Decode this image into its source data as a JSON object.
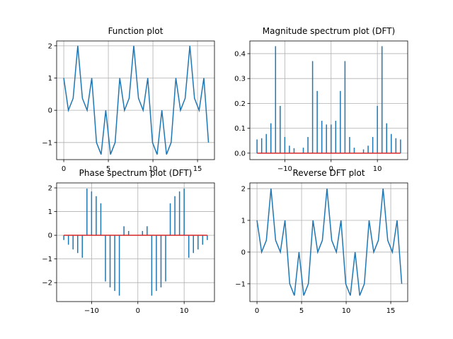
{
  "chart_data": [
    {
      "type": "line",
      "title": "Function plot",
      "color": "#1f77b4",
      "grid": true,
      "x": [
        0,
        0.52,
        1.05,
        1.57,
        2.09,
        2.62,
        3.14,
        3.67,
        4.19,
        4.71,
        5.24,
        5.76,
        6.28,
        6.81,
        7.33,
        7.85,
        8.38,
        8.9,
        9.42,
        9.95,
        10.47,
        11.0,
        11.52,
        12.04,
        12.57,
        13.09,
        13.61,
        14.14,
        14.66,
        15.18,
        15.71,
        16.23
      ],
      "values": [
        1,
        0,
        0.37,
        2,
        0.37,
        0,
        1,
        -1,
        -1.37,
        0,
        -1.37,
        -1,
        1,
        0,
        0.37,
        2,
        0.37,
        0,
        1,
        -1,
        -1.37,
        0,
        -1.37,
        -1,
        1,
        0,
        0.37,
        2,
        0.37,
        0,
        1,
        -1
      ],
      "xlim": [
        -0.8,
        16.9
      ],
      "ylim": [
        -1.53,
        2.15
      ],
      "xticks": [
        0,
        5,
        10,
        15
      ],
      "yticks": [
        {
          "value": -1,
          "label": "−1"
        },
        0,
        1,
        2
      ]
    },
    {
      "type": "stem",
      "title": "Magnitude spectrum plot (DFT)",
      "color": "#1f77b4",
      "baseline_color": "#d62728",
      "grid": true,
      "x": [
        -16,
        -15,
        -14,
        -13,
        -12,
        -11,
        -10,
        -9,
        -8,
        -7,
        -6,
        -5,
        -4,
        -3,
        -2,
        -1,
        0,
        1,
        2,
        3,
        4,
        5,
        6,
        7,
        8,
        9,
        10,
        11,
        12,
        13,
        14,
        15
      ],
      "values": [
        0.055,
        0.06,
        0.077,
        0.12,
        0.43,
        0.19,
        0.065,
        0.03,
        0.02,
        0.0,
        0.022,
        0.065,
        0.37,
        0.25,
        0.13,
        0.115,
        0.115,
        0.13,
        0.25,
        0.37,
        0.065,
        0.022,
        0.0,
        0.015,
        0.03,
        0.065,
        0.19,
        0.43,
        0.12,
        0.077,
        0.06,
        0.055
      ],
      "xlim": [
        -17.55,
        16.55
      ],
      "ylim": [
        -0.026,
        0.451
      ],
      "xticks": [
        {
          "value": -10,
          "label": "−10"
        },
        0,
        10
      ],
      "yticks": [
        {
          "value": 0,
          "label": "0.0"
        },
        0.1,
        0.2,
        0.3,
        0.4
      ]
    },
    {
      "type": "stem",
      "title": "Phase spectrum plot (DFT)",
      "color": "#1f77b4",
      "baseline_color": "#d62728",
      "grid": true,
      "x": [
        -16,
        -15,
        -14,
        -13,
        -12,
        -11,
        -10,
        -9,
        -8,
        -7,
        -6,
        -5,
        -4,
        -3,
        -2,
        -1,
        0,
        1,
        2,
        3,
        4,
        5,
        6,
        7,
        8,
        9,
        10,
        11,
        12,
        13,
        14,
        15
      ],
      "values": [
        -0.2,
        -0.4,
        -0.6,
        -0.75,
        -0.95,
        1.97,
        1.85,
        1.65,
        1.35,
        -1.95,
        -2.2,
        -2.35,
        -2.55,
        0.38,
        0.18,
        0,
        0,
        0.18,
        0.38,
        -2.55,
        -2.35,
        -2.2,
        -1.95,
        1.35,
        1.65,
        1.85,
        1.97,
        -0.95,
        -0.75,
        -0.6,
        -0.4,
        -0.2
      ],
      "xlim": [
        -17.55,
        16.55
      ],
      "ylim": [
        -2.8,
        2.21
      ],
      "xticks": [
        {
          "value": -10,
          "label": "−10"
        },
        0,
        10
      ],
      "yticks": [
        {
          "value": -2,
          "label": "−2"
        },
        {
          "value": -1,
          "label": "−1"
        },
        0,
        1,
        2
      ]
    },
    {
      "type": "line",
      "title": "Reverse DFT plot",
      "color": "#1f77b4",
      "grid": true,
      "x": [
        0,
        0.52,
        1.05,
        1.57,
        2.09,
        2.62,
        3.14,
        3.67,
        4.19,
        4.71,
        5.24,
        5.76,
        6.28,
        6.81,
        7.33,
        7.85,
        8.38,
        8.9,
        9.42,
        9.95,
        10.47,
        11.0,
        11.52,
        12.04,
        12.57,
        13.09,
        13.61,
        14.14,
        14.66,
        15.18,
        15.71,
        16.23
      ],
      "values": [
        1,
        0,
        0.37,
        2,
        0.37,
        0,
        1,
        -1,
        -1.37,
        0,
        -1.37,
        -1,
        1,
        0,
        0.37,
        2,
        0.37,
        0,
        1,
        -1,
        -1.37,
        0,
        -1.37,
        -1,
        1,
        0,
        0.37,
        2,
        0.37,
        0,
        1,
        -1
      ],
      "xlim": [
        -0.8,
        16.9
      ],
      "ylim": [
        -1.56,
        2.18
      ],
      "xticks": [
        0,
        5,
        10,
        15
      ],
      "yticks": [
        {
          "value": -1,
          "label": "−1"
        },
        0,
        1,
        2
      ]
    }
  ]
}
